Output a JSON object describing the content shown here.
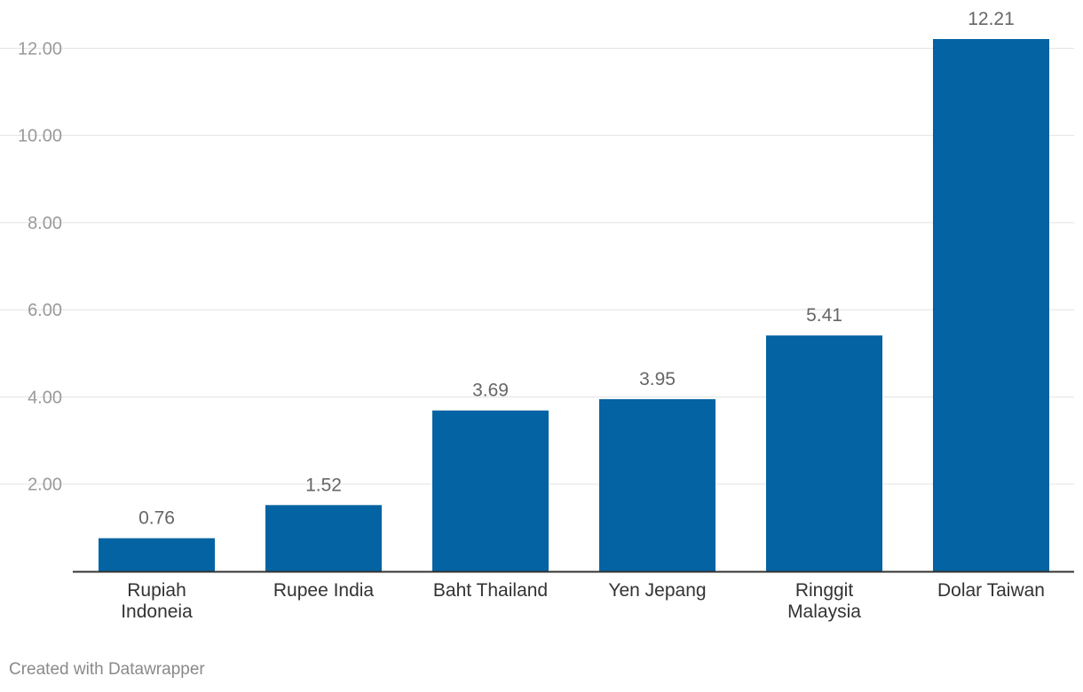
{
  "chart_data": {
    "type": "bar",
    "categories": [
      [
        "Rupiah",
        "Indoneia"
      ],
      [
        "Rupee India"
      ],
      [
        "Baht Thailand"
      ],
      [
        "Yen Jepang"
      ],
      [
        "Ringgit",
        "Malaysia"
      ],
      [
        "Dolar Taiwan"
      ]
    ],
    "values": [
      0.76,
      1.52,
      3.69,
      3.95,
      5.41,
      12.21
    ],
    "value_labels": [
      "0.76",
      "1.52",
      "3.69",
      "3.95",
      "5.41",
      "12.21"
    ],
    "yticks": [
      2,
      4,
      6,
      8,
      10,
      12
    ],
    "ytick_labels": [
      "2.00",
      "4.00",
      "6.00",
      "8.00",
      "10.00",
      "12.00"
    ],
    "ylim": [
      0,
      12.21
    ],
    "grid": true,
    "title": "",
    "xlabel": "",
    "ylabel": "",
    "colors": {
      "bar": "#0463a2",
      "grid": "#e3e3e3",
      "axis": "#333333"
    }
  },
  "footer": {
    "credit": "Created with Datawrapper"
  }
}
